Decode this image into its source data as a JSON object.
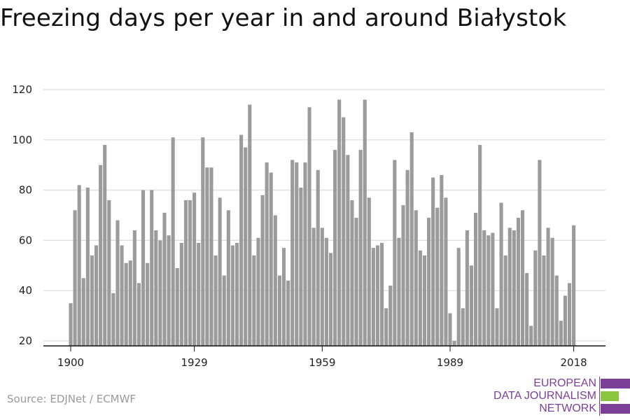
{
  "title": "Freezing days per year in and around Białystok",
  "source": "Source: EDJNet / ECMWF",
  "logo": {
    "lines": [
      "EUROPEAN",
      "DATA JOURNALISM",
      "NETWORK"
    ],
    "colors": {
      "purple": "#7b3f98",
      "green": "#8cc63f"
    }
  },
  "chart_data": {
    "type": "bar",
    "title": "Freezing days per year in and around Białystok",
    "xlabel": "",
    "ylabel": "",
    "x_ticks": [
      "1900",
      "1929",
      "1959",
      "1989",
      "2018"
    ],
    "y_ticks": [
      20,
      40,
      60,
      80,
      100,
      120
    ],
    "ylim": [
      18,
      124
    ],
    "xlim": [
      1900,
      2018
    ],
    "grid": true,
    "bar_color": "#9b9b9b",
    "years": [
      1900,
      1901,
      1902,
      1903,
      1904,
      1905,
      1906,
      1907,
      1908,
      1909,
      1910,
      1911,
      1912,
      1913,
      1914,
      1915,
      1916,
      1917,
      1918,
      1919,
      1920,
      1921,
      1922,
      1923,
      1924,
      1925,
      1926,
      1927,
      1928,
      1929,
      1930,
      1931,
      1932,
      1933,
      1934,
      1935,
      1936,
      1937,
      1938,
      1939,
      1940,
      1941,
      1942,
      1943,
      1944,
      1945,
      1946,
      1947,
      1948,
      1949,
      1950,
      1951,
      1952,
      1953,
      1954,
      1955,
      1956,
      1957,
      1958,
      1959,
      1960,
      1961,
      1962,
      1963,
      1964,
      1965,
      1966,
      1967,
      1968,
      1969,
      1970,
      1971,
      1972,
      1973,
      1974,
      1975,
      1976,
      1977,
      1978,
      1979,
      1980,
      1981,
      1982,
      1983,
      1984,
      1985,
      1986,
      1987,
      1988,
      1989,
      1990,
      1991,
      1992,
      1993,
      1994,
      1995,
      1996,
      1997,
      1998,
      1999,
      2000,
      2001,
      2002,
      2003,
      2004,
      2005,
      2006,
      2007,
      2008,
      2009,
      2010,
      2011,
      2012,
      2013,
      2014,
      2015,
      2016,
      2017,
      2018
    ],
    "values": [
      35,
      72,
      82,
      45,
      81,
      54,
      58,
      90,
      98,
      76,
      39,
      68,
      58,
      51,
      52,
      64,
      43,
      80,
      51,
      80,
      64,
      60,
      71,
      62,
      101,
      49,
      59,
      76,
      76,
      79,
      59,
      101,
      89,
      89,
      54,
      77,
      46,
      72,
      58,
      59,
      102,
      97,
      114,
      54,
      61,
      78,
      91,
      87,
      70,
      46,
      57,
      44,
      92,
      91,
      81,
      91,
      113,
      65,
      88,
      65,
      61,
      55,
      96,
      116,
      109,
      94,
      76,
      69,
      96,
      116,
      77,
      57,
      58,
      59,
      33,
      42,
      92,
      61,
      74,
      88,
      103,
      72,
      56,
      54,
      69,
      85,
      73,
      86,
      77,
      31,
      20,
      57,
      33,
      64,
      50,
      71,
      98,
      64,
      62,
      63,
      33,
      75,
      54,
      65,
      64,
      69,
      72,
      47,
      26,
      56,
      92,
      54,
      65,
      61,
      46,
      28,
      38,
      43,
      66
    ]
  }
}
